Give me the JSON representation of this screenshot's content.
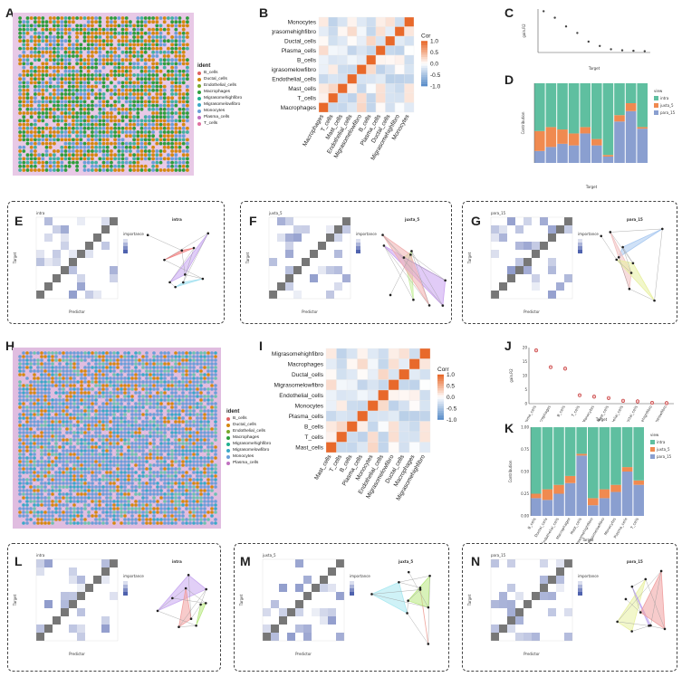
{
  "panels": {
    "A": "A",
    "B": "B",
    "C": "C",
    "D": "D",
    "E": "E",
    "F": "F",
    "G": "G",
    "H": "H",
    "I": "I",
    "J": "J",
    "K": "K",
    "L": "L",
    "M": "M",
    "N": "N"
  },
  "legend_A": {
    "title": "ident",
    "items": [
      "B_cells",
      "Ductal_cells",
      "Endothelial_cells",
      "Macrophages",
      "Migrasomehighfibro",
      "Migrasomelowfibro",
      "Monocytes",
      "Plasma_cells",
      "T_cells"
    ]
  },
  "legend_H": {
    "title": "ident",
    "items": [
      "B_cells",
      "Ductal_cells",
      "Endothelial_cells",
      "Macrophages",
      "Migrasomehighfibro",
      "Migrasomelowfibro",
      "Monocytes",
      "Plasma_cells"
    ]
  },
  "colors": {
    "orange": "#d4880f",
    "green": "#2e9e3c",
    "blue": "#6a9ed8",
    "tissue": "#d9a8d4",
    "corr_pos": "#e8692b",
    "corr_neg": "#5b8ec9",
    "intra": "#5fbfa0",
    "juxta": "#f08a50",
    "para": "#8a9fd0"
  },
  "chart_data": [
    {
      "panel": "B",
      "type": "heatmap",
      "rows": [
        "Monocytes",
        "Migrasomehighfibro",
        "Ductal_cells",
        "Plasma_cells",
        "B_cells",
        "Migrasomelowfibro",
        "Endothelial_cells",
        "Mast_cells",
        "T_cells",
        "Macrophages"
      ],
      "cols": [
        "Macrophages",
        "T_cells",
        "Mast_cells",
        "Endothelial_cells",
        "Migrasomelowfibro",
        "B_cells",
        "Plasma_cells",
        "Ductal_cells",
        "Migrasomehighfibro",
        "Monocytes"
      ],
      "legend_title": "Cor",
      "legend_ticks": [
        "1.0",
        "0.5",
        "0.0",
        "-0.5",
        "-1.0"
      ]
    },
    {
      "panel": "C",
      "type": "scatter",
      "ylabel": "gain.R2",
      "xlabel": "Target",
      "values": [
        19,
        16,
        12,
        9,
        5,
        3,
        1.5,
        1,
        0.8,
        0.6
      ]
    },
    {
      "panel": "D",
      "type": "bar",
      "xlabel": "Target",
      "ylabel": "Contribution",
      "legend_title": "view",
      "series": [
        {
          "name": "intra",
          "values": [
            0.6,
            0.55,
            0.58,
            0.63,
            0.55,
            0.7,
            0.9,
            0.4,
            0.25,
            0.55
          ]
        },
        {
          "name": "juxta_5",
          "values": [
            0.25,
            0.25,
            0.18,
            0.15,
            0.08,
            0.08,
            0.02,
            0.08,
            0.1,
            0.02
          ]
        },
        {
          "name": "para_15",
          "values": [
            0.15,
            0.2,
            0.24,
            0.22,
            0.37,
            0.22,
            0.08,
            0.52,
            0.65,
            0.43
          ]
        }
      ]
    },
    {
      "panel": "I",
      "type": "heatmap",
      "rows": [
        "Migrasomehighfibro",
        "Macrophages",
        "Ductal_cells",
        "Migrasomelowfibro",
        "Endothelial_cells",
        "Monocytes",
        "Plasma_cells",
        "B_cells",
        "T_cells",
        "Mast_cells"
      ],
      "cols": [
        "Mast_cells",
        "T_cells",
        "B_cells",
        "Plasma_cells",
        "Monocytes",
        "Endothelial_cells",
        "Migrasomelowfibro",
        "Ductal_cells",
        "Macrophages",
        "Migrasomehighfibro"
      ],
      "legend_title": "Corr",
      "legend_ticks": [
        "1.0",
        "0.5",
        "0.0",
        "-0.5",
        "-1.0"
      ]
    },
    {
      "panel": "J",
      "type": "scatter",
      "ylabel": "gain.R2",
      "xlabel": "Target",
      "yticks": [
        "0",
        "5",
        "10",
        "15",
        "20"
      ],
      "categories": [
        "Plasma_cells",
        "Macrophages",
        "B_cells",
        "T_cells",
        "Monocytes",
        "Mast_cells",
        "Endothelial_cells",
        "Ductal_cells",
        "Migrasomehighfibro",
        "Migrasomelowfibro"
      ],
      "values": [
        19,
        13,
        12.5,
        3,
        2.5,
        2,
        1,
        0.8,
        0.3,
        0.2
      ]
    },
    {
      "panel": "K",
      "type": "bar",
      "xlabel": "Target",
      "ylabel": "Contribution",
      "yticks": [
        "0.00",
        "0.25",
        "0.50",
        "0.75",
        "1.00"
      ],
      "legend_title": "view",
      "categories": [
        "B_cells",
        "Ductal_cells",
        "Endothelial_cells",
        "Macrophages",
        "Mast_cells",
        "Migrasomehighfibro",
        "Migrasomelowfibro",
        "Monocytes",
        "Plasma_cells",
        "T_cells"
      ],
      "series": [
        {
          "name": "intra",
          "values": [
            0.75,
            0.7,
            0.65,
            0.55,
            0.3,
            0.8,
            0.7,
            0.65,
            0.45,
            0.6
          ]
        },
        {
          "name": "juxta_5",
          "values": [
            0.05,
            0.12,
            0.1,
            0.08,
            0.02,
            0.08,
            0.1,
            0.08,
            0.05,
            0.05
          ]
        },
        {
          "name": "para_15",
          "values": [
            0.2,
            0.18,
            0.25,
            0.37,
            0.68,
            0.12,
            0.2,
            0.27,
            0.5,
            0.35
          ]
        }
      ]
    }
  ],
  "small_panels": {
    "E": {
      "heat_title": "intra",
      "net_title": "intra",
      "xlabel": "Predictor",
      "ylabel": "Target",
      "legend": "importance"
    },
    "F": {
      "heat_title": "juxta_5",
      "net_title": "juxta_5",
      "xlabel": "Predictor",
      "ylabel": "Target",
      "legend": "importance"
    },
    "G": {
      "heat_title": "para_15",
      "net_title": "para_15",
      "xlabel": "Predictor",
      "ylabel": "Target",
      "legend": "importance"
    },
    "L": {
      "heat_title": "intra",
      "net_title": "intra",
      "xlabel": "Predictor",
      "ylabel": "Target",
      "legend": "importance"
    },
    "M": {
      "heat_title": "juxta_5",
      "net_title": "juxta_5",
      "xlabel": "Predictor",
      "ylabel": "Target",
      "legend": "importance"
    },
    "N": {
      "heat_title": "para_15",
      "net_title": "para_15",
      "xlabel": "Predictor",
      "ylabel": "Target",
      "legend": "importance"
    }
  }
}
